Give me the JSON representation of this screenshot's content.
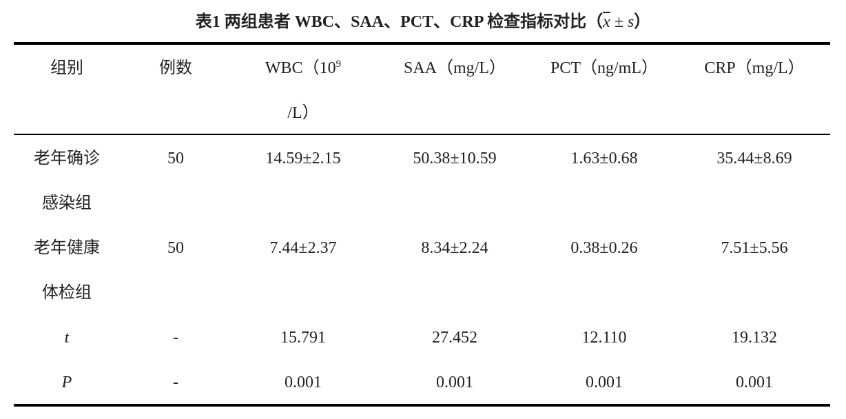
{
  "title": {
    "main": "表1 两组患者 WBC、SAA、PCT、CRP 检查指标对比（",
    "mean": "x",
    "pm": "±",
    "sd": "s",
    "close": "）"
  },
  "table": {
    "header": [
      "组别",
      "例数",
      {
        "text": "WBC（10",
        "sup": "9",
        "unit": "/L）"
      },
      "SAA（mg/L）",
      "PCT（ng/mL）",
      "CRP（mg/L）"
    ],
    "rows": [
      [
        "老年确诊感染组",
        "50",
        "14.59±2.15",
        "50.38±10.59",
        "1.63±0.68",
        "35.44±8.69"
      ],
      [
        "老年健康体检组",
        "50",
        "7.44±2.37",
        "8.34±2.24",
        "0.38±0.26",
        "7.51±5.56"
      ],
      [
        "t",
        "-",
        "15.791",
        "27.452",
        "12.110",
        "19.132"
      ],
      [
        "P",
        "-",
        "0.001",
        "0.001",
        "0.001",
        "0.001"
      ]
    ]
  }
}
